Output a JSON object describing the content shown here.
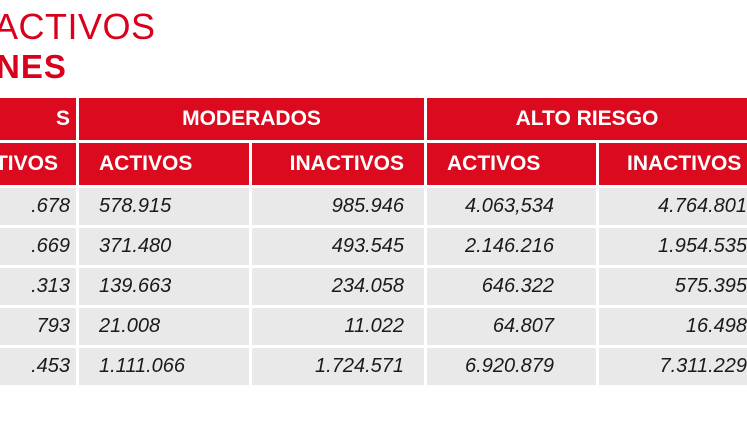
{
  "title": {
    "line1": "ACTIVOS",
    "line2": "NES"
  },
  "groups": [
    {
      "label": "S"
    },
    {
      "label": "MODERADOS"
    },
    {
      "label": "ALTO RIESGO"
    }
  ],
  "subheaders": [
    "TIVOS",
    "ACTIVOS",
    "INACTIVOS",
    "ACTIVOS",
    "INACTIVOS"
  ],
  "rows": [
    [
      ".678",
      "578.915",
      "985.946",
      "4.063,534",
      "4.764.801"
    ],
    [
      ".669",
      "371.480",
      "493.545",
      "2.146.216",
      "1.954.535"
    ],
    [
      ".313",
      "139.663",
      "234.058",
      "646.322",
      "575.395"
    ],
    [
      "793",
      "21.008",
      "11.022",
      "64.807",
      "16.498"
    ],
    [
      ".453",
      "1.111.066",
      "1.724.571",
      "6.920.879",
      "7.311.229"
    ]
  ]
}
